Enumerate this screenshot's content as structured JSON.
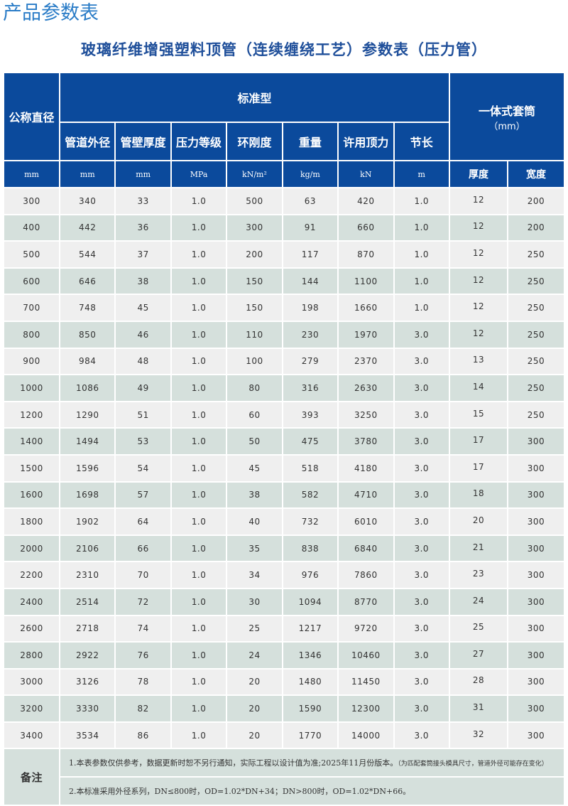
{
  "page_title": "产品参数表",
  "subtitle": "玻璃纤维增强塑料顶管（连续缠绕工艺）参数表（压力管）",
  "colors": {
    "header_bg": "#0b4a9c",
    "row_light": "#efefef",
    "row_green": "#d5e0dc",
    "title": "#2a7cc7",
    "subtitle": "#1f4f9a"
  },
  "header": {
    "nominal_diameter": "公称直径",
    "standard_group": "标准型",
    "sleeve_group": "一体式套筒",
    "sleeve_unit": "（mm）",
    "columns": [
      "管道外径",
      "管壁厚度",
      "压力等级",
      "环刚度",
      "重量",
      "许用顶力",
      "节长"
    ],
    "units": [
      "mm",
      "mm",
      "mm",
      "MPa",
      "kN/m²",
      "kg/m",
      "kN",
      "m",
      "厚度",
      "宽度"
    ]
  },
  "rows": [
    [
      "300",
      "340",
      "33",
      "1.0",
      "500",
      "63",
      "420",
      "1.0",
      "12",
      "200"
    ],
    [
      "400",
      "442",
      "36",
      "1.0",
      "300",
      "91",
      "660",
      "1.0",
      "12",
      "200"
    ],
    [
      "500",
      "544",
      "37",
      "1.0",
      "200",
      "117",
      "870",
      "1.0",
      "12",
      "250"
    ],
    [
      "600",
      "646",
      "38",
      "1.0",
      "150",
      "144",
      "1100",
      "1.0",
      "12",
      "250"
    ],
    [
      "700",
      "748",
      "45",
      "1.0",
      "150",
      "198",
      "1660",
      "1.0",
      "12",
      "250"
    ],
    [
      "800",
      "850",
      "46",
      "1.0",
      "110",
      "230",
      "1970",
      "3.0",
      "12",
      "250"
    ],
    [
      "900",
      "984",
      "48",
      "1.0",
      "100",
      "279",
      "2370",
      "3.0",
      "13",
      "250"
    ],
    [
      "1000",
      "1086",
      "49",
      "1.0",
      "80",
      "316",
      "2630",
      "3.0",
      "14",
      "250"
    ],
    [
      "1200",
      "1290",
      "51",
      "1.0",
      "60",
      "393",
      "3250",
      "3.0",
      "15",
      "250"
    ],
    [
      "1400",
      "1494",
      "53",
      "1.0",
      "50",
      "475",
      "3780",
      "3.0",
      "17",
      "300"
    ],
    [
      "1500",
      "1596",
      "54",
      "1.0",
      "45",
      "518",
      "4180",
      "3.0",
      "17",
      "300"
    ],
    [
      "1600",
      "1698",
      "57",
      "1.0",
      "38",
      "582",
      "4710",
      "3.0",
      "18",
      "300"
    ],
    [
      "1800",
      "1902",
      "64",
      "1.0",
      "40",
      "732",
      "6010",
      "3.0",
      "20",
      "300"
    ],
    [
      "2000",
      "2106",
      "66",
      "1.0",
      "35",
      "838",
      "6840",
      "3.0",
      "21",
      "300"
    ],
    [
      "2200",
      "2310",
      "70",
      "1.0",
      "34",
      "976",
      "7860",
      "3.0",
      "23",
      "300"
    ],
    [
      "2400",
      "2514",
      "72",
      "1.0",
      "30",
      "1094",
      "8770",
      "3.0",
      "24",
      "300"
    ],
    [
      "2600",
      "2718",
      "74",
      "1.0",
      "25",
      "1217",
      "9720",
      "3.0",
      "25",
      "300"
    ],
    [
      "2800",
      "2922",
      "76",
      "1.0",
      "24",
      "1346",
      "10460",
      "3.0",
      "27",
      "300"
    ],
    [
      "3000",
      "3126",
      "78",
      "1.0",
      "20",
      "1480",
      "11450",
      "3.0",
      "28",
      "300"
    ],
    [
      "3200",
      "3330",
      "82",
      "1.0",
      "20",
      "1590",
      "12300",
      "3.0",
      "31",
      "300"
    ],
    [
      "3400",
      "3534",
      "86",
      "1.0",
      "20",
      "1770",
      "14000",
      "3.0",
      "32",
      "300"
    ]
  ],
  "notes": {
    "label": "备注",
    "note1": "1.本表参数仅供参考，数据更新时恕不另行通知，实际工程以设计值为准;2025年11月份版本。",
    "note1_small": "（为匹配套筒接头模具尺寸，管道外径可能存在变化）",
    "note2": "2.本标准采用外径系列，DN≤800时，OD=1.02*DN+34；DN>800时，OD=1.02*DN+66。"
  }
}
